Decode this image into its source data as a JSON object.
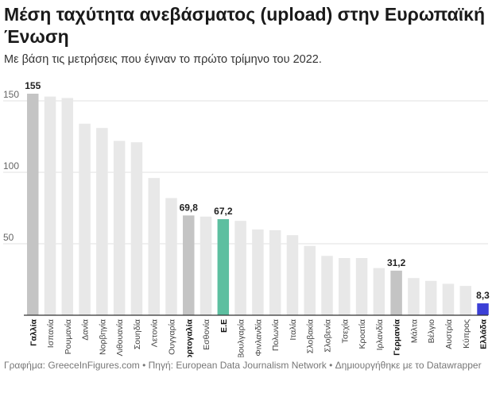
{
  "title": "Μέση ταχύτητα ανεβάσματος (upload) στην Ευρωπαϊκή Ένωση",
  "subtitle": "Με βάση τις μετρήσεις που έγιναν το πρώτο τρίμηνο του 2022.",
  "footer": {
    "credit_label": "Γραφήμα:",
    "credit_value": "GreeceInFigures.com",
    "source_label": "Πηγή:",
    "source_value": "European Data Journalism Network",
    "made_with": "Δημιουργήθηκε με το Datawrapper"
  },
  "colors": {
    "default_bar": "#e8e8e8",
    "highlight_gray": "#c4c4c4",
    "eu_bar": "#5dbfa0",
    "greece_bar": "#3b3fd6",
    "grid": "#e2e2e2",
    "axis": "#333333"
  },
  "chart_data": {
    "type": "bar",
    "title": "",
    "xlabel": "",
    "ylabel": "",
    "ylim": [
      0,
      160
    ],
    "yticks": [
      50,
      100,
      150
    ],
    "grid": true,
    "categories": [
      "Γαλλία",
      "Ισπανία",
      "Ρουμανία",
      "Δανία",
      "Νορβηγία",
      "Λιθουανία",
      "Σουηδία",
      "Λετονία",
      "Ουγγαρία",
      "Πορτογαλία",
      "Εσθονία",
      "Ε.Ε",
      "Βουλγαρία",
      "Φινλανδία",
      "Πολωνία",
      "Ιταλία",
      "Σλοβακία",
      "Σλοβενία",
      "Τσεχία",
      "Κροατία",
      "Ιρλανδία",
      "Γερμανία",
      "Μάλτα",
      "Βέλγιο",
      "Αυστρία",
      "Κύπρος",
      "Ελλάδα"
    ],
    "values": [
      155,
      153,
      152,
      134,
      131,
      122,
      121,
      96,
      82,
      69.8,
      69,
      67.2,
      66,
      60,
      59.5,
      56,
      48.5,
      41.5,
      40,
      40,
      33,
      31.2,
      26,
      24,
      22,
      20.5,
      8.3
    ],
    "value_labels": [
      "155",
      "",
      "",
      "",
      "",
      "",
      "",
      "",
      "",
      "69,8",
      "",
      "67,2",
      "",
      "",
      "",
      "",
      "",
      "",
      "",
      "",
      "",
      "31,2",
      "",
      "",
      "",
      "",
      "8,3"
    ],
    "highlight": [
      "gray",
      "",
      "",
      "",
      "",
      "",
      "",
      "",
      "",
      "gray",
      "",
      "eu",
      "",
      "",
      "",
      "",
      "",
      "",
      "",
      "",
      "",
      "gray",
      "",
      "",
      "",
      "",
      "greece"
    ],
    "bold_labels": [
      true,
      false,
      false,
      false,
      false,
      false,
      false,
      false,
      false,
      true,
      false,
      true,
      false,
      false,
      false,
      false,
      false,
      false,
      false,
      false,
      false,
      true,
      false,
      false,
      false,
      false,
      true
    ]
  }
}
